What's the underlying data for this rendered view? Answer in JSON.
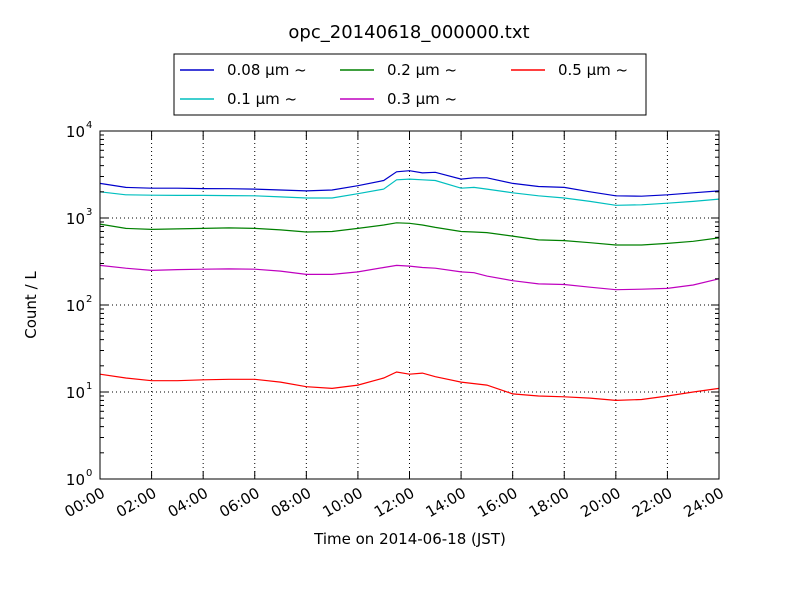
{
  "chart_data": {
    "type": "line",
    "title": "opc_20140618_000000.txt",
    "xlabel": "Time on 2014-06-18 (JST)",
    "ylabel": "Count / L",
    "y_scale": "log",
    "ylim": [
      1,
      10000
    ],
    "xlim": [
      0,
      24
    ],
    "grid": true,
    "legend_position": "top-center, above plot",
    "x_ticks": [
      {
        "v": 0,
        "label": "00:00"
      },
      {
        "v": 2,
        "label": "02:00"
      },
      {
        "v": 4,
        "label": "04:00"
      },
      {
        "v": 6,
        "label": "06:00"
      },
      {
        "v": 8,
        "label": "08:00"
      },
      {
        "v": 10,
        "label": "10:00"
      },
      {
        "v": 12,
        "label": "12:00"
      },
      {
        "v": 14,
        "label": "14:00"
      },
      {
        "v": 16,
        "label": "16:00"
      },
      {
        "v": 18,
        "label": "18:00"
      },
      {
        "v": 20,
        "label": "20:00"
      },
      {
        "v": 22,
        "label": "22:00"
      },
      {
        "v": 24,
        "label": "24:00"
      }
    ],
    "y_ticks": [
      {
        "v": 1,
        "base": "10",
        "exp": "0"
      },
      {
        "v": 10,
        "base": "10",
        "exp": "1"
      },
      {
        "v": 100,
        "base": "10",
        "exp": "2"
      },
      {
        "v": 1000,
        "base": "10",
        "exp": "3"
      },
      {
        "v": 10000,
        "base": "10",
        "exp": "4"
      }
    ],
    "x": [
      0,
      1,
      2,
      3,
      4,
      5,
      6,
      7,
      8,
      9,
      10,
      11,
      11.5,
      12,
      12.5,
      13,
      14,
      14.5,
      15,
      16,
      17,
      18,
      19,
      20,
      21,
      22,
      23,
      24
    ],
    "series": [
      {
        "name": "0.08",
        "name_unit": "μm ~",
        "color": "#0000cc",
        "values": [
          2500,
          2250,
          2200,
          2200,
          2180,
          2170,
          2150,
          2100,
          2050,
          2100,
          2350,
          2700,
          3400,
          3500,
          3300,
          3350,
          2800,
          2900,
          2900,
          2500,
          2300,
          2250,
          2000,
          1800,
          1780,
          1850,
          1950,
          2050
        ]
      },
      {
        "name": "0.1",
        "name_unit": "μm ~",
        "color": "#00bfbf",
        "values": [
          2000,
          1850,
          1830,
          1820,
          1820,
          1810,
          1800,
          1750,
          1700,
          1700,
          1900,
          2150,
          2750,
          2800,
          2750,
          2700,
          2200,
          2250,
          2150,
          1950,
          1800,
          1700,
          1550,
          1400,
          1420,
          1480,
          1550,
          1650
        ]
      },
      {
        "name": "0.2",
        "name_unit": "μm ~",
        "color": "#008000",
        "values": [
          850,
          760,
          740,
          750,
          760,
          770,
          760,
          730,
          690,
          700,
          760,
          830,
          880,
          870,
          830,
          780,
          700,
          690,
          680,
          620,
          560,
          550,
          520,
          490,
          490,
          510,
          540,
          590
        ]
      },
      {
        "name": "0.3",
        "name_unit": "μm ~",
        "color": "#bf00bf",
        "values": [
          285,
          265,
          250,
          255,
          258,
          260,
          258,
          245,
          225,
          225,
          240,
          270,
          285,
          280,
          270,
          265,
          240,
          235,
          215,
          190,
          175,
          172,
          160,
          150,
          152,
          155,
          170,
          200
        ]
      },
      {
        "name": "0.5",
        "name_unit": "μm ~",
        "color": "#ff0000",
        "values": [
          16,
          14.5,
          13.5,
          13.5,
          13.8,
          14,
          14,
          13,
          11.5,
          11,
          12,
          14.5,
          17,
          16,
          16.5,
          15,
          13,
          12.5,
          12,
          9.5,
          9,
          8.8,
          8.5,
          8,
          8.2,
          9,
          10,
          11
        ]
      }
    ]
  }
}
